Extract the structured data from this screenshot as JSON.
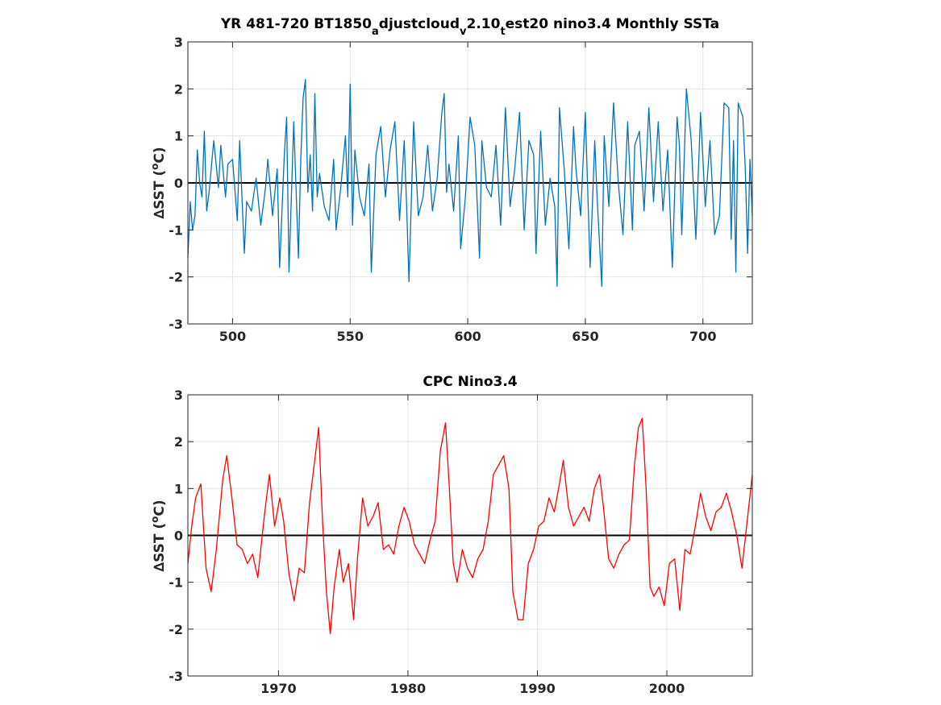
{
  "chart_data": [
    {
      "type": "line",
      "title_parts": [
        "YR 481-720 BT1850",
        "a",
        "djustcloud",
        "v",
        "2.10",
        "t",
        "est20 nino3.4 Monthly SSTa"
      ],
      "xlabel": "",
      "ylabel_parts": [
        "∆SST (",
        "o",
        "C)"
      ],
      "xlim": [
        481,
        721
      ],
      "ylim": [
        -3,
        3
      ],
      "xticks": [
        500,
        550,
        600,
        650,
        700
      ],
      "yticks": [
        -3,
        -2,
        -1,
        0,
        1,
        2,
        3
      ],
      "grid": true,
      "zero_line": true,
      "series": [
        {
          "color": "#0072BD",
          "x": [
            481,
            482,
            483,
            484,
            485,
            486,
            487,
            488,
            489,
            490,
            492,
            494,
            495,
            497,
            498,
            500,
            502,
            503,
            505,
            506,
            508,
            510,
            512,
            514,
            515,
            517,
            519,
            520,
            522,
            523,
            524,
            526,
            528,
            529,
            530,
            531,
            532,
            533,
            534,
            535,
            536,
            537,
            539,
            541,
            543,
            544,
            546,
            548,
            549,
            550,
            551,
            552,
            554,
            556,
            558,
            559,
            561,
            563,
            565,
            567,
            569,
            571,
            573,
            574,
            575,
            577,
            579,
            581,
            583,
            585,
            587,
            589,
            590,
            591,
            592,
            594,
            596,
            597,
            599,
            601,
            603,
            605,
            606,
            608,
            610,
            612,
            614,
            616,
            618,
            620,
            622,
            624,
            626,
            628,
            629,
            631,
            633,
            635,
            637,
            638,
            639,
            641,
            643,
            645,
            646,
            648,
            650,
            652,
            654,
            655,
            657,
            658,
            660,
            662,
            664,
            666,
            668,
            670,
            671,
            673,
            675,
            677,
            679,
            681,
            683,
            685,
            687,
            689,
            690,
            691,
            693,
            695,
            697,
            699,
            701,
            703,
            705,
            707,
            709,
            711,
            712,
            713,
            714,
            715,
            717,
            718,
            719,
            720,
            721
          ],
          "y": [
            -1.6,
            -0.4,
            -1.0,
            -0.7,
            0.7,
            0.0,
            -0.3,
            1.1,
            -0.6,
            -0.2,
            0.9,
            -0.1,
            0.8,
            -0.3,
            0.4,
            0.5,
            -0.8,
            0.9,
            -1.5,
            -0.4,
            -0.6,
            0.1,
            -0.9,
            -0.1,
            0.5,
            -0.7,
            0.3,
            -1.8,
            0.6,
            1.4,
            -1.9,
            1.3,
            -1.6,
            0.5,
            1.8,
            2.2,
            -0.2,
            0.6,
            -0.6,
            1.9,
            -0.3,
            0.2,
            -0.5,
            -0.8,
            0.5,
            -1.0,
            -0.1,
            1.0,
            -0.3,
            2.1,
            -0.9,
            0.7,
            -0.3,
            -0.7,
            0.4,
            -1.9,
            0.6,
            1.2,
            -0.3,
            0.7,
            1.3,
            -0.8,
            0.9,
            -0.5,
            -2.1,
            1.3,
            -0.7,
            -0.3,
            0.8,
            -0.6,
            0.1,
            1.5,
            1.9,
            -0.2,
            0.4,
            -0.6,
            1.0,
            -1.4,
            -0.3,
            1.4,
            0.8,
            -1.6,
            0.9,
            -0.1,
            -0.3,
            0.8,
            -0.9,
            1.6,
            -0.5,
            0.3,
            1.5,
            -1.0,
            0.9,
            0.6,
            -1.5,
            1.1,
            -0.9,
            0.1,
            -0.5,
            -2.2,
            1.6,
            0.3,
            -1.4,
            1.2,
            0.3,
            -0.7,
            1.5,
            -1.8,
            0.9,
            -0.3,
            -2.2,
            1.0,
            -0.5,
            1.7,
            0.0,
            -1.1,
            1.3,
            -1.0,
            0.8,
            1.1,
            -0.6,
            1.6,
            -0.4,
            1.3,
            -0.6,
            0.7,
            -1.8,
            1.4,
            0.8,
            -1.1,
            2.0,
            0.9,
            -1.2,
            1.5,
            -0.5,
            0.9,
            -1.1,
            -0.7,
            1.7,
            1.6,
            -1.2,
            0.9,
            -1.9,
            1.7,
            1.4,
            0.3,
            -1.5,
            0.5,
            -0.7
          ]
        }
      ]
    },
    {
      "type": "line",
      "title_parts": [
        "CPC Nino3.4"
      ],
      "xlabel": "",
      "ylabel_parts": [
        "∆SST (",
        "o",
        "C)"
      ],
      "xlim": [
        1963,
        2006.6
      ],
      "ylim": [
        -3,
        3
      ],
      "xticks": [
        1970,
        1980,
        1990,
        2000
      ],
      "yticks": [
        -3,
        -2,
        -1,
        0,
        1,
        2,
        3
      ],
      "grid": true,
      "zero_line": true,
      "series": [
        {
          "color": "#FF0000",
          "x": [
            1963.0,
            1963.3,
            1963.6,
            1964.0,
            1964.4,
            1964.8,
            1965.2,
            1965.7,
            1966.0,
            1966.4,
            1966.8,
            1967.2,
            1967.6,
            1968.0,
            1968.4,
            1968.9,
            1969.3,
            1969.7,
            1970.1,
            1970.4,
            1970.8,
            1971.2,
            1971.6,
            1972.0,
            1972.4,
            1972.8,
            1973.1,
            1973.4,
            1973.7,
            1974.0,
            1974.3,
            1974.7,
            1975.0,
            1975.4,
            1975.8,
            1976.1,
            1976.5,
            1976.9,
            1977.3,
            1977.7,
            1978.1,
            1978.5,
            1978.9,
            1979.3,
            1979.7,
            1980.1,
            1980.5,
            1980.9,
            1981.3,
            1981.7,
            1982.1,
            1982.5,
            1982.9,
            1983.2,
            1983.5,
            1983.8,
            1984.2,
            1984.6,
            1985.0,
            1985.4,
            1985.8,
            1986.2,
            1986.6,
            1987.0,
            1987.4,
            1987.8,
            1988.1,
            1988.5,
            1988.9,
            1989.3,
            1989.7,
            1990.1,
            1990.5,
            1990.9,
            1991.3,
            1991.7,
            1992.0,
            1992.4,
            1992.8,
            1993.2,
            1993.6,
            1994.0,
            1994.4,
            1994.8,
            1995.1,
            1995.5,
            1995.9,
            1996.3,
            1996.7,
            1997.1,
            1997.5,
            1997.8,
            1998.1,
            1998.4,
            1998.7,
            1999.0,
            1999.4,
            1999.8,
            2000.2,
            2000.6,
            2001.0,
            2001.4,
            2001.8,
            2002.2,
            2002.6,
            2003.0,
            2003.4,
            2003.8,
            2004.2,
            2004.6,
            2005.0,
            2005.4,
            2005.8,
            2006.2,
            2006.6
          ],
          "y": [
            -0.6,
            0.2,
            0.8,
            1.1,
            -0.7,
            -1.2,
            -0.3,
            1.2,
            1.7,
            0.8,
            -0.2,
            -0.3,
            -0.6,
            -0.4,
            -0.9,
            0.4,
            1.3,
            0.2,
            0.8,
            0.3,
            -0.8,
            -1.4,
            -0.7,
            -0.8,
            0.7,
            1.6,
            2.3,
            0.3,
            -1.2,
            -2.1,
            -1.1,
            -0.3,
            -1.0,
            -0.6,
            -1.8,
            -0.5,
            0.8,
            0.2,
            0.4,
            0.7,
            -0.3,
            -0.2,
            -0.4,
            0.2,
            0.6,
            0.3,
            -0.2,
            -0.4,
            -0.6,
            -0.1,
            0.3,
            1.8,
            2.4,
            1.0,
            -0.6,
            -1.0,
            -0.3,
            -0.7,
            -0.9,
            -0.5,
            -0.3,
            0.3,
            1.3,
            1.5,
            1.7,
            1.0,
            -1.2,
            -1.8,
            -1.8,
            -0.6,
            -0.3,
            0.2,
            0.3,
            0.8,
            0.5,
            1.1,
            1.6,
            0.6,
            0.2,
            0.4,
            0.6,
            0.3,
            1.0,
            1.3,
            0.6,
            -0.5,
            -0.7,
            -0.4,
            -0.2,
            -0.1,
            1.5,
            2.3,
            2.5,
            1.0,
            -1.1,
            -1.3,
            -1.1,
            -1.5,
            -0.6,
            -0.5,
            -1.6,
            -0.3,
            -0.4,
            0.2,
            0.9,
            0.4,
            0.1,
            0.5,
            0.6,
            0.9,
            0.5,
            0.0,
            -0.7,
            0.3,
            1.3
          ]
        }
      ]
    }
  ]
}
